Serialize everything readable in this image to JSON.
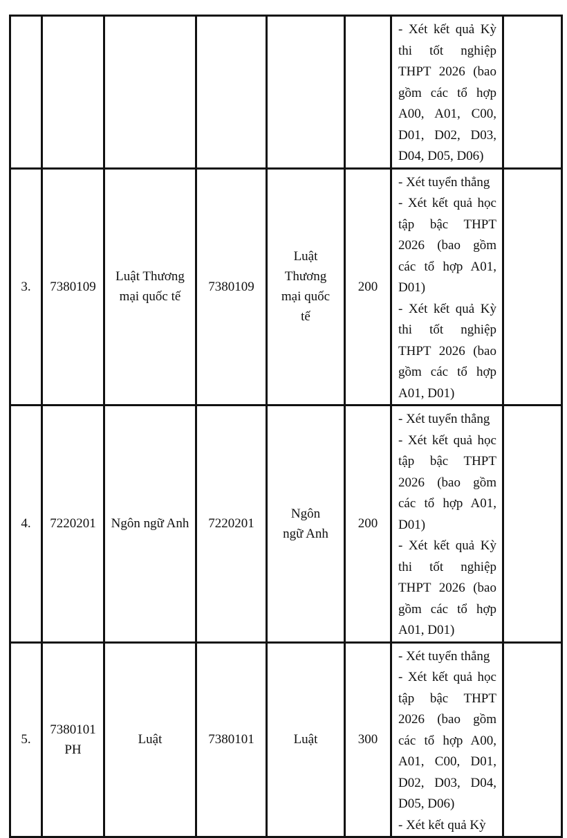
{
  "rows": [
    {
      "stt": "",
      "code": "",
      "name": "",
      "code2": "",
      "name2": "",
      "quota": "",
      "methods": [
        [
          "- Xét kết quả Kỳ",
          "thi tốt nghiệp",
          "THPT 2026 (bao",
          "gồm các tổ hợp",
          "A00, A01, C00,",
          "D01, D02, D03,",
          "D04, D05, D06)"
        ]
      ]
    },
    {
      "stt": "3.",
      "code": "7380109",
      "name": "Luật Thương mại quốc tế",
      "code2": "7380109",
      "name2": "Luật Thương mại quốc tế",
      "quota": "200",
      "methods": [
        [
          "- Xét tuyển thẳng"
        ],
        [
          "- Xét kết quả học",
          "tập bậc THPT",
          "2026 (bao gồm",
          "các tổ hợp A01,",
          "D01)"
        ],
        [
          "- Xét kết quả Kỳ",
          "thi tốt nghiệp",
          "THPT 2026 (bao",
          "gồm các tổ hợp",
          "A01, D01)"
        ]
      ]
    },
    {
      "stt": "4.",
      "code": "7220201",
      "name": "Ngôn ngữ Anh",
      "code2": "7220201",
      "name2": "Ngôn ngữ Anh",
      "quota": "200",
      "methods": [
        [
          "- Xét tuyển thẳng"
        ],
        [
          "- Xét kết quả học",
          "tập bậc THPT",
          "2026 (bao gồm",
          "các tổ hợp A01,",
          "D01)"
        ],
        [
          "- Xét kết quả Kỳ",
          "thi tốt nghiệp",
          "THPT 2026 (bao",
          "gồm các tổ hợp",
          "A01, D01)"
        ]
      ]
    },
    {
      "stt": "5.",
      "code": "7380101 PH",
      "name": "Luật",
      "code2": "7380101",
      "name2": "Luật",
      "quota": "300",
      "methods": [
        [
          "- Xét tuyển thẳng"
        ],
        [
          "- Xét kết quả học",
          "tập bậc THPT",
          "2026 (bao gồm",
          "các tổ hợp A00,",
          "A01, C00, D01,",
          "D02, D03, D04,",
          "D05, D06)"
        ],
        [
          "- Xét kết quả Kỳ"
        ]
      ]
    }
  ]
}
